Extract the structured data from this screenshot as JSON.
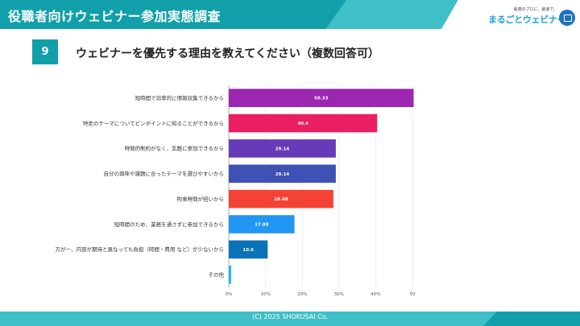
{
  "header": {
    "title": "役職者向けウェビナー参加実態調査"
  },
  "logo": {
    "tagline": "最適のプロに、最速で。",
    "text": "まるごとウェビナー"
  },
  "question": {
    "number": "9",
    "title": "ウェビナーを優先する理由を教えてください（複数回答可）"
  },
  "chart_data": {
    "type": "bar",
    "orientation": "horizontal",
    "categories": [
      "短時間で効率的に情報収集できるから",
      "特定のテーマについてピンポイントに知ることができるから",
      "時間的制約がなく、気軽に参加できるから",
      "自分の興味や課題に合ったテーマを選びやすいから",
      "拘束時間が短いから",
      "短時間のため、業務を通さずに参加できるから",
      "万が一、内容が期待と異なっても負担（時間・費用 など）が少ないから",
      "その他"
    ],
    "values": [
      50.33,
      40.4,
      29.14,
      29.14,
      28.48,
      17.88,
      10.6,
      0.66
    ],
    "value_labels": [
      "50.33",
      "40.4",
      "29.14",
      "29.14",
      "28.48",
      "17.88",
      "10.6",
      ""
    ],
    "colors": [
      "#9b27b0",
      "#e91e63",
      "#673ab7",
      "#3f51b5",
      "#f44336",
      "#2196f3",
      "#0a72b8",
      "#29b6f6"
    ],
    "xlim": [
      0,
      50
    ],
    "ticks": [
      "0%",
      "10%",
      "20%",
      "30%",
      "40%",
      "50"
    ],
    "tick_values": [
      0,
      10,
      20,
      30,
      40,
      50
    ]
  },
  "footer": {
    "copyright": "(C) 2025 SHOKUSAI Co."
  }
}
